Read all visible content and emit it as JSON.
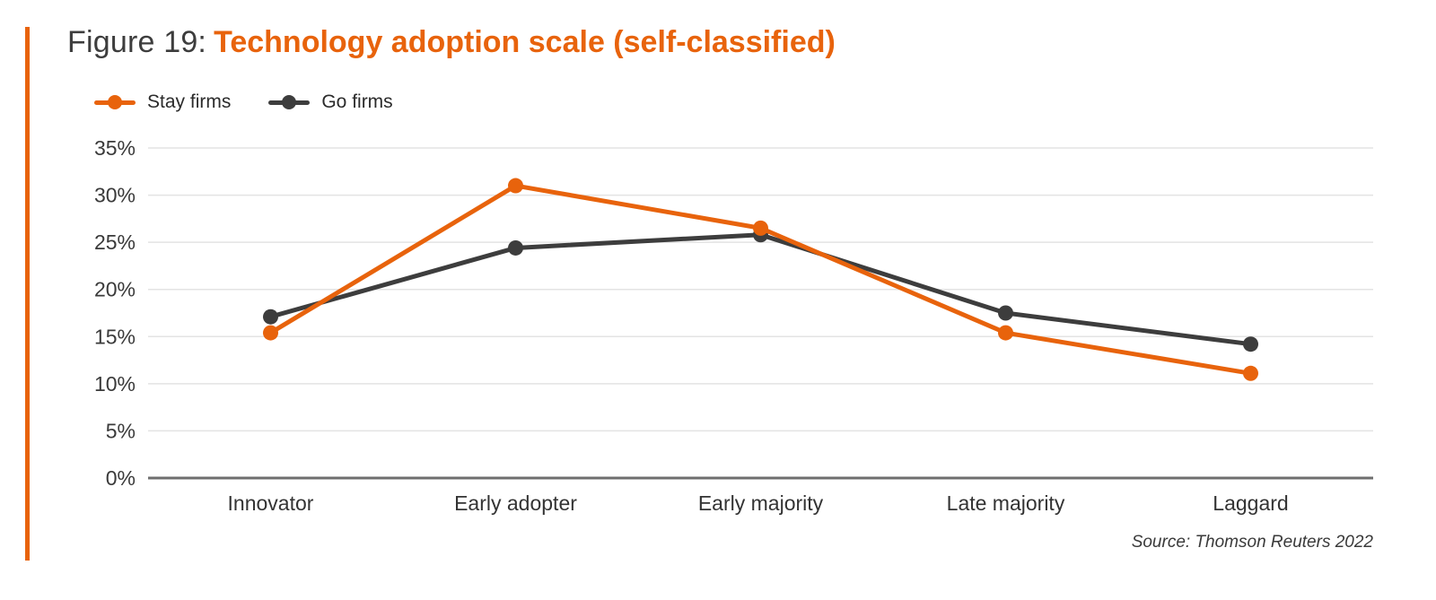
{
  "page": {
    "figure_label": "Figure 19:",
    "figure_title": "Technology adoption scale (self-classified)",
    "source": "Source: Thomson Reuters 2022",
    "accent_color": "#E8630C"
  },
  "chart_data": {
    "type": "line",
    "title": "Technology adoption scale (self-classified)",
    "categories": [
      "Innovator",
      "Early adopter",
      "Early majority",
      "Late majority",
      "Laggard"
    ],
    "series": [
      {
        "name": "Stay firms",
        "color": "#E8630C",
        "values": [
          15.4,
          31.0,
          26.5,
          15.4,
          11.1
        ]
      },
      {
        "name": "Go firms",
        "color": "#3D3D3D",
        "values": [
          17.1,
          24.4,
          25.8,
          17.5,
          14.2
        ]
      }
    ],
    "xlabel": "",
    "ylabel": "",
    "ylim": [
      0,
      35
    ],
    "ytick_step": 5,
    "ytick_labels": [
      "0%",
      "5%",
      "10%",
      "15%",
      "20%",
      "25%",
      "30%",
      "35%"
    ],
    "grid": true,
    "gridline_color": "#e3e3e3",
    "axis_line_color": "#6e6e6e",
    "legend_position": "top-left"
  }
}
